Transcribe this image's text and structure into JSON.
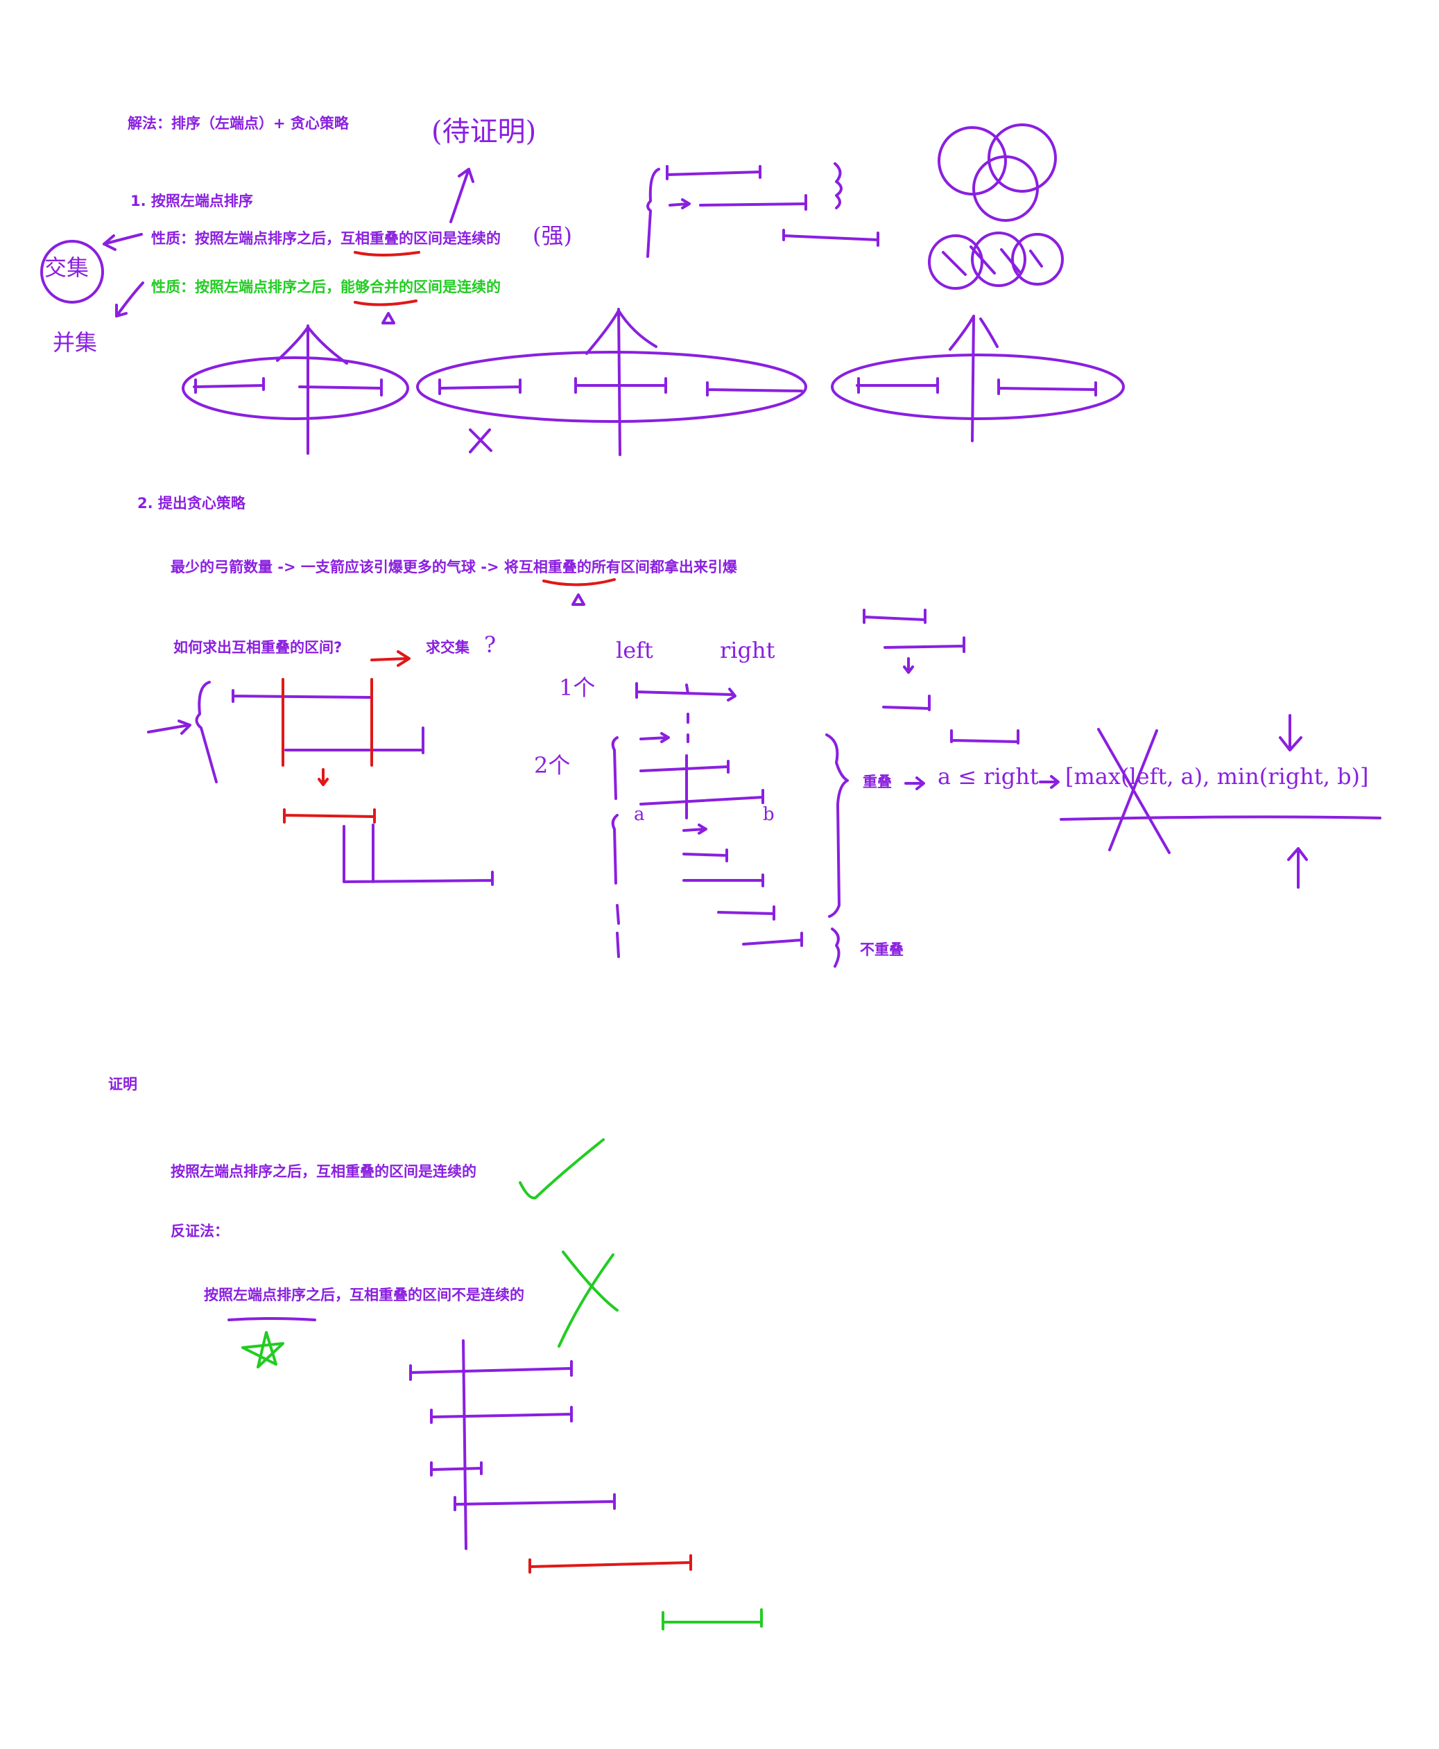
{
  "colors": {
    "purple": "#8a1fe0",
    "green": "#22cc22",
    "red": "#e01818"
  },
  "title": "解法：排序（左端点）+ 贪心策略",
  "step1": {
    "heading": "1. 按照左端点排序",
    "property1": {
      "prefix": "性质：按照左端点排序之后，",
      "highlight": "互相重叠",
      "suffix": "的区间是连续的",
      "note": "(强)"
    },
    "property2": {
      "prefix": "性质：按照左端点排序之后，",
      "highlight": "能够合并",
      "suffix": "的区间是连续的"
    },
    "note_to_prove": "(待证明)",
    "left_labels": {
      "intersection": "交集",
      "union": "并集"
    }
  },
  "step2": {
    "heading": "2. 提出贪心策略",
    "strategy": {
      "prefix": "最少的弓箭数量 -> 一支箭应该引爆更多的气球 -> 将",
      "highlight": "互相重叠",
      "suffix": "的所有区间都拿出来引爆"
    },
    "how_to": "如何求出互相重叠的区间?",
    "intersection_label": "求交集",
    "question_mark": "?",
    "diagram": {
      "left_label": "left",
      "right_label": "right",
      "row1_label": "1个",
      "row2_label": "2个",
      "a_label": "a",
      "b_label": "b",
      "overlap_label": "重叠",
      "condition": "a ≤ right",
      "interval_formula": "[max(left, a), min(right, b)]",
      "no_overlap_label": "不重叠"
    }
  },
  "proof": {
    "heading": "证明",
    "claim": "按照左端点排序之后，互相重叠的区间是连续的",
    "method": "反证法：",
    "assumption": "按照左端点排序之后，互相重叠的区间不是连续的"
  }
}
